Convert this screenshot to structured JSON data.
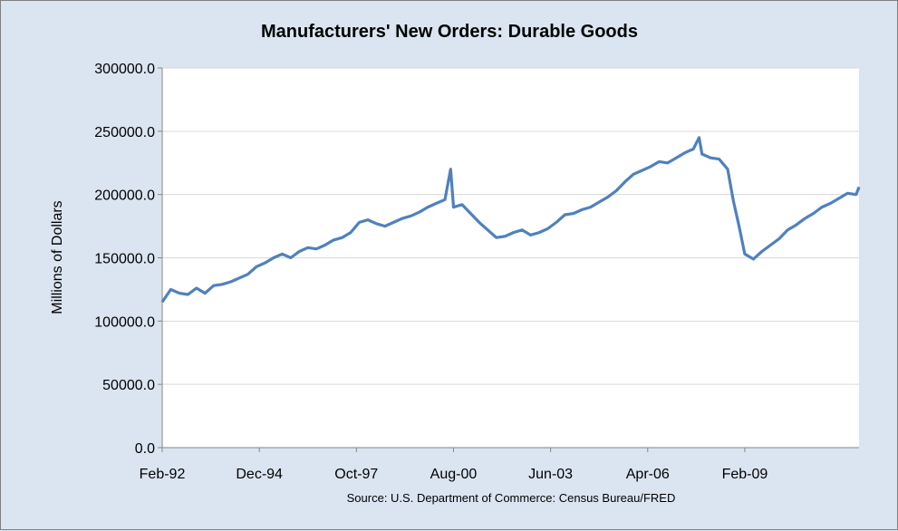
{
  "chart_data": {
    "type": "line",
    "title": "Manufacturers' New Orders: Durable Goods",
    "ylabel": "Millions of Dollars",
    "xlabel": "",
    "source": "Source: U.S. Department of Commerce: Census Bureau/FRED",
    "ylim": [
      0,
      300000
    ],
    "y_ticks": [
      "0.0",
      "50000.0",
      "100000.0",
      "150000.0",
      "200000.0",
      "250000.0",
      "300000.0"
    ],
    "x_ticks": [
      "Feb-92",
      "Dec-94",
      "Oct-97",
      "Aug-00",
      "Jun-03",
      "Apr-06",
      "Feb-09"
    ],
    "x_start": "1992-02",
    "x_end": "2012-06",
    "grid": true,
    "legend": "none",
    "colors": {
      "line": "#4f81bd",
      "plot_bg": "#ffffff",
      "chart_bg": "#dbe5f1",
      "grid": "#d9d9d9"
    },
    "series": [
      {
        "points": [
          [
            "1992-02",
            115000
          ],
          [
            "1992-05",
            125000
          ],
          [
            "1992-08",
            122000
          ],
          [
            "1992-11",
            121000
          ],
          [
            "1993-02",
            126000
          ],
          [
            "1993-05",
            122000
          ],
          [
            "1993-08",
            128000
          ],
          [
            "1993-11",
            129000
          ],
          [
            "1994-02",
            131000
          ],
          [
            "1994-05",
            134000
          ],
          [
            "1994-08",
            137000
          ],
          [
            "1994-11",
            143000
          ],
          [
            "1995-02",
            146000
          ],
          [
            "1995-05",
            150000
          ],
          [
            "1995-08",
            153000
          ],
          [
            "1995-11",
            150000
          ],
          [
            "1996-02",
            155000
          ],
          [
            "1996-05",
            158000
          ],
          [
            "1996-08",
            157000
          ],
          [
            "1996-11",
            160000
          ],
          [
            "1997-02",
            164000
          ],
          [
            "1997-05",
            166000
          ],
          [
            "1997-08",
            170000
          ],
          [
            "1997-11",
            178000
          ],
          [
            "1998-02",
            180000
          ],
          [
            "1998-05",
            177000
          ],
          [
            "1998-08",
            175000
          ],
          [
            "1998-11",
            178000
          ],
          [
            "1999-02",
            181000
          ],
          [
            "1999-05",
            183000
          ],
          [
            "1999-08",
            186000
          ],
          [
            "1999-11",
            190000
          ],
          [
            "2000-02",
            193000
          ],
          [
            "2000-05",
            196000
          ],
          [
            "2000-07",
            220000
          ],
          [
            "2000-08",
            190000
          ],
          [
            "2000-11",
            192000
          ],
          [
            "2001-02",
            185000
          ],
          [
            "2001-05",
            178000
          ],
          [
            "2001-08",
            172000
          ],
          [
            "2001-11",
            166000
          ],
          [
            "2002-02",
            167000
          ],
          [
            "2002-05",
            170000
          ],
          [
            "2002-08",
            172000
          ],
          [
            "2002-11",
            168000
          ],
          [
            "2003-02",
            170000
          ],
          [
            "2003-05",
            173000
          ],
          [
            "2003-08",
            178000
          ],
          [
            "2003-11",
            184000
          ],
          [
            "2004-02",
            185000
          ],
          [
            "2004-05",
            188000
          ],
          [
            "2004-08",
            190000
          ],
          [
            "2004-11",
            194000
          ],
          [
            "2005-02",
            198000
          ],
          [
            "2005-05",
            203000
          ],
          [
            "2005-08",
            210000
          ],
          [
            "2005-11",
            216000
          ],
          [
            "2006-02",
            219000
          ],
          [
            "2006-05",
            222000
          ],
          [
            "2006-08",
            226000
          ],
          [
            "2006-11",
            225000
          ],
          [
            "2007-02",
            229000
          ],
          [
            "2007-05",
            233000
          ],
          [
            "2007-08",
            236000
          ],
          [
            "2007-10",
            245000
          ],
          [
            "2007-11",
            232000
          ],
          [
            "2008-02",
            229000
          ],
          [
            "2008-05",
            228000
          ],
          [
            "2008-08",
            220000
          ],
          [
            "2008-10",
            195000
          ],
          [
            "2008-12",
            175000
          ],
          [
            "2009-02",
            153000
          ],
          [
            "2009-05",
            149000
          ],
          [
            "2009-08",
            155000
          ],
          [
            "2009-11",
            160000
          ],
          [
            "2010-02",
            165000
          ],
          [
            "2010-05",
            172000
          ],
          [
            "2010-08",
            176000
          ],
          [
            "2010-11",
            181000
          ],
          [
            "2011-02",
            185000
          ],
          [
            "2011-05",
            190000
          ],
          [
            "2011-08",
            193000
          ],
          [
            "2011-11",
            197000
          ],
          [
            "2012-02",
            201000
          ],
          [
            "2012-05",
            200000
          ],
          [
            "2012-06",
            206000
          ]
        ]
      }
    ]
  }
}
